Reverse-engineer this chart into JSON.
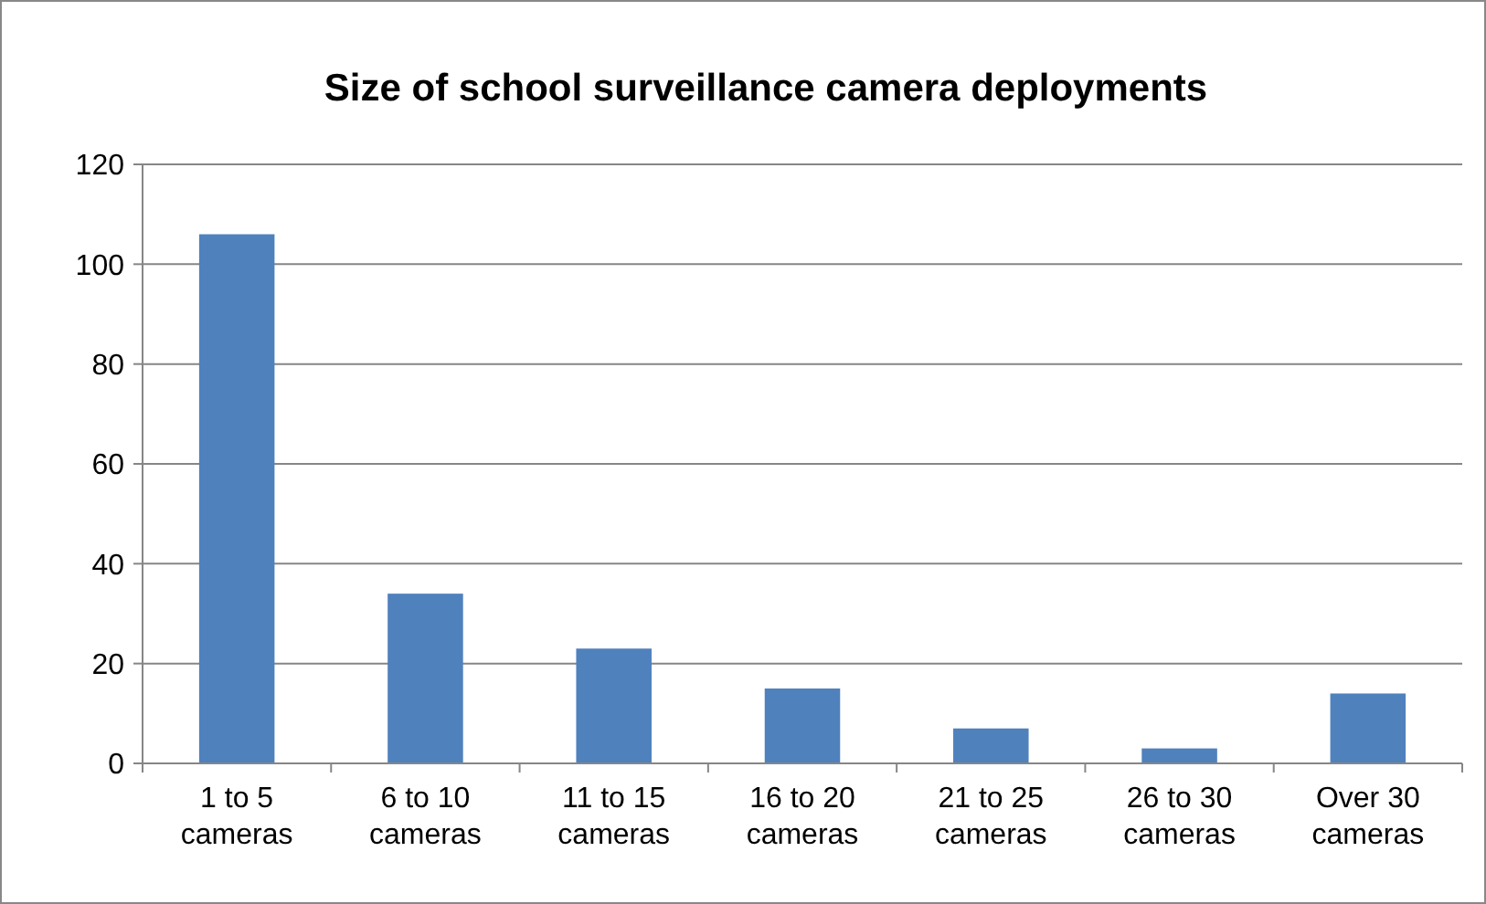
{
  "chart_data": {
    "type": "bar",
    "title": "Size of school surveillance camera deployments",
    "categories": [
      "1 to 5 cameras",
      "6 to 10 cameras",
      "11 to 15 cameras",
      "16 to 20 cameras",
      "21 to 25 cameras",
      "26 to 30 cameras",
      "Over 30 cameras"
    ],
    "values": [
      106,
      34,
      23,
      15,
      7,
      3,
      14
    ],
    "color": "#4f81bd",
    "ylim": [
      0,
      120
    ],
    "yticks": [
      0,
      20,
      40,
      60,
      80,
      100,
      120
    ],
    "grid": "y"
  }
}
